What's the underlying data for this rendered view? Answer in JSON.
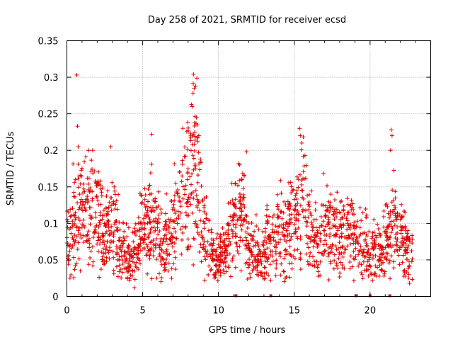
{
  "chart_data": {
    "type": "scatter",
    "title": "Day 258 of 2021, SRMTID for receiver ecsd",
    "xlabel": "GPS time / hours",
    "ylabel": "SRMTID / TECUs",
    "xlim": [
      0,
      24
    ],
    "ylim": [
      0,
      0.35
    ],
    "x_ticks": [
      0,
      5,
      10,
      15,
      20
    ],
    "x_tick_labels": [
      "0",
      "5",
      "10",
      "15",
      "20"
    ],
    "y_ticks": [
      0,
      0.05,
      0.1,
      0.15,
      0.2,
      0.25,
      0.3,
      0.35
    ],
    "y_tick_labels": [
      "0",
      "0.05",
      "0.1",
      "0.15",
      "0.2",
      "0.25",
      "0.3",
      "0.35"
    ],
    "grid": true,
    "marker": "plus",
    "color": "#e00000",
    "series_profile": [
      [
        0.0,
        0.07
      ],
      [
        0.5,
        0.1
      ],
      [
        1.0,
        0.13
      ],
      [
        1.5,
        0.12
      ],
      [
        2.0,
        0.11
      ],
      [
        2.5,
        0.08
      ],
      [
        3.0,
        0.1
      ],
      [
        3.5,
        0.07
      ],
      [
        4.0,
        0.05
      ],
      [
        4.5,
        0.06
      ],
      [
        5.0,
        0.09
      ],
      [
        5.5,
        0.11
      ],
      [
        6.0,
        0.08
      ],
      [
        6.5,
        0.07
      ],
      [
        7.0,
        0.09
      ],
      [
        7.5,
        0.12
      ],
      [
        8.0,
        0.15
      ],
      [
        8.5,
        0.18
      ],
      [
        9.0,
        0.1
      ],
      [
        9.5,
        0.06
      ],
      [
        10.0,
        0.05
      ],
      [
        10.5,
        0.07
      ],
      [
        11.0,
        0.09
      ],
      [
        11.5,
        0.11
      ],
      [
        12.0,
        0.07
      ],
      [
        12.5,
        0.06
      ],
      [
        13.0,
        0.06
      ],
      [
        13.5,
        0.08
      ],
      [
        14.0,
        0.09
      ],
      [
        14.5,
        0.08
      ],
      [
        15.0,
        0.1
      ],
      [
        15.5,
        0.13
      ],
      [
        16.0,
        0.09
      ],
      [
        16.5,
        0.08
      ],
      [
        17.0,
        0.09
      ],
      [
        17.5,
        0.1
      ],
      [
        18.0,
        0.08
      ],
      [
        18.5,
        0.09
      ],
      [
        19.0,
        0.08
      ],
      [
        19.5,
        0.07
      ],
      [
        20.0,
        0.06
      ],
      [
        20.5,
        0.06
      ],
      [
        21.0,
        0.07
      ],
      [
        21.5,
        0.1
      ],
      [
        22.0,
        0.08
      ],
      [
        22.5,
        0.06
      ],
      [
        22.8,
        0.06
      ]
    ],
    "peaks": [
      [
        0.65,
        0.303
      ],
      [
        0.7,
        0.233
      ],
      [
        0.75,
        0.205
      ],
      [
        1.7,
        0.2
      ],
      [
        2.9,
        0.205
      ],
      [
        5.6,
        0.222
      ],
      [
        8.35,
        0.304
      ],
      [
        8.4,
        0.285
      ],
      [
        8.5,
        0.288
      ],
      [
        8.55,
        0.245
      ],
      [
        8.6,
        0.235
      ],
      [
        8.7,
        0.22
      ],
      [
        11.85,
        0.198
      ],
      [
        15.35,
        0.23
      ],
      [
        15.4,
        0.22
      ],
      [
        15.5,
        0.21
      ],
      [
        21.4,
        0.228
      ],
      [
        21.45,
        0.22
      ],
      [
        21.35,
        0.2
      ],
      [
        4.45,
        0.012
      ],
      [
        22.6,
        0.018
      ]
    ],
    "gap_markers_x": [
      11.15,
      13.45,
      19.1,
      20.0,
      21.3
    ],
    "x_range_data": [
      0.0,
      22.8
    ]
  }
}
